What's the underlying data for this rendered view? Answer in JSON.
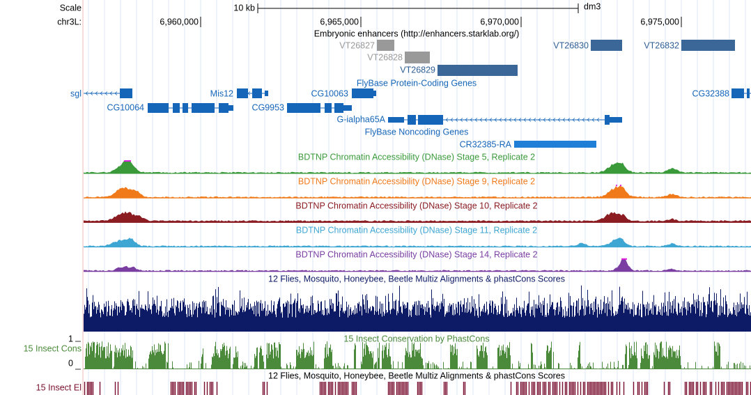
{
  "ruler": {
    "scale_label": "Scale",
    "scale_bar": "10 kb",
    "assembly": "dm3",
    "chrom": "chr3L:",
    "ticks": [
      "6,960,000",
      "6,965,000",
      "6,970,000",
      "6,975,000"
    ]
  },
  "enhancers": {
    "title": "Embryonic enhancers (http://enhancers.starklab.org/)",
    "features": [
      "VT26827",
      "VT26828",
      "VT26829",
      "VT26830",
      "VT26832"
    ]
  },
  "protein_coding": {
    "title": "FlyBase Protein-Coding Genes",
    "genes": [
      "sgl",
      "Mis12",
      "CG10063",
      "CG32388",
      "CG10064",
      "CG9953",
      "G-ialpha65A"
    ]
  },
  "noncoding": {
    "title": "FlyBase Noncoding Genes",
    "genes": [
      "CR32385-RA"
    ]
  },
  "dnase": [
    {
      "title": "BDTNP Chromatin Accessibility (DNase) Stage 5, Replicate 2",
      "color": "#3a9a3a"
    },
    {
      "title": "BDTNP Chromatin Accessibility (DNase) Stage 9, Replicate 2",
      "color": "#f07a1a"
    },
    {
      "title": "BDTNP Chromatin Accessibility (DNase) Stage 10, Replicate 2",
      "color": "#8a1c22"
    },
    {
      "title": "BDTNP Chromatin Accessibility (DNase) Stage 11, Replicate 2",
      "color": "#3ea6d2"
    },
    {
      "title": "BDTNP Chromatin Accessibility (DNase) Stage 14, Replicate 2",
      "color": "#7a3ea2"
    }
  ],
  "multiz": {
    "title": "12 Flies, Mosquito, Honeybee, Beetle Multiz Alignments & phastCons Scores",
    "color": "#0d1a66"
  },
  "phastcons": {
    "title": "15 Insect Conservation by PhastCons",
    "left_label": "15 Insect Cons",
    "max_label": 1,
    "min_label": 0,
    "color": "#4a8a3a"
  },
  "elements": {
    "title": "12 Flies, Mosquito, Honeybee, Beetle Multiz Alignments & phastCons Scores",
    "left_label": "15 Insect El",
    "color": "#7a1030"
  }
}
